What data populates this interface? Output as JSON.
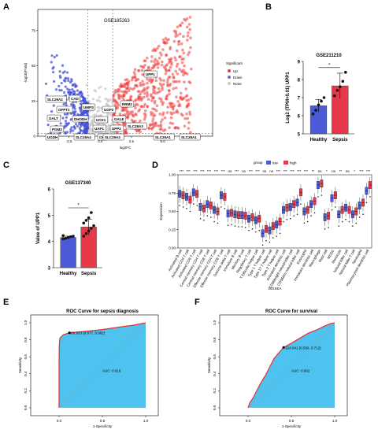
{
  "panels": {
    "a": {
      "letter": "A"
    },
    "b": {
      "letter": "B"
    },
    "c": {
      "letter": "C"
    },
    "d": {
      "letter": "D"
    },
    "e": {
      "letter": "E"
    },
    "f": {
      "letter": "F"
    }
  },
  "chart_data": [
    {
      "panel": "A",
      "type": "scatter",
      "title": "GSE185263",
      "xlabel": "log2FC",
      "ylabel": "-log10(P.Val)",
      "xlim": [
        -5,
        9
      ],
      "ylim": [
        0,
        90
      ],
      "x_ticks": [
        "-2.5",
        "0.0",
        "2.5",
        "5.0"
      ],
      "y_ticks": [
        "0",
        "25",
        "50",
        "75"
      ],
      "legend": {
        "title": "Significant",
        "items": [
          "Up",
          "Down",
          "None"
        ],
        "colors": [
          "#ef3b3b",
          "#6470d4",
          "#c8c8c8"
        ]
      },
      "gene_labels": [
        "UPP1",
        "SLC29A2",
        "CAD",
        "GFPT1",
        "UMPS",
        "UGP2",
        "RRM2",
        "GALT",
        "DHODH",
        "UCK1",
        "GALE",
        "PGM3",
        "UAP1",
        "UPP2",
        "SLC28A3",
        "UGDH",
        "SLC29A4",
        "CK2",
        "SLC29A3",
        "SLC29A1",
        "SLC28A1"
      ]
    },
    {
      "panel": "B",
      "type": "bar",
      "title": "GSE211210",
      "ylabel": "Log2 (TPM+0.01) UPP1",
      "categories": [
        "Healthy",
        "Sepsis"
      ],
      "values": [
        6.55,
        7.65
      ],
      "errors": [
        0.35,
        0.7
      ],
      "points": [
        [
          6.1,
          6.3,
          6.6,
          6.8,
          7.0
        ],
        [
          7.1,
          7.4,
          7.6,
          7.9,
          8.4
        ]
      ],
      "colors": [
        "#4b5bd8",
        "#e8394a"
      ],
      "ylim": [
        5,
        9
      ],
      "y_ticks": [
        "5",
        "6",
        "7",
        "8",
        "9"
      ],
      "significance": "*"
    },
    {
      "panel": "C",
      "type": "bar",
      "title": "GSE137340",
      "ylabel": "Value of UPP1",
      "categories": [
        "Healthy",
        "Sepsis"
      ],
      "values": [
        4.15,
        4.55
      ],
      "errors": [
        0.05,
        0.3
      ],
      "points": [
        [
          4.1,
          4.12,
          4.15,
          4.18,
          4.2,
          4.22
        ],
        [
          4.2,
          4.3,
          4.4,
          4.5,
          4.6,
          4.7,
          4.8,
          4.9,
          5.1
        ]
      ],
      "colors": [
        "#4b5bd8",
        "#e8394a"
      ],
      "ylim": [
        3,
        6
      ],
      "y_ticks": [
        "3",
        "4",
        "5",
        "6"
      ],
      "significance": "*"
    },
    {
      "panel": "D",
      "type": "boxplot",
      "xlabel": "ssGSEA",
      "ylabel": "Expression",
      "legend": {
        "title": "group",
        "items": [
          "low",
          "high"
        ],
        "colors": [
          "#4b5bd8",
          "#e8394a"
        ]
      },
      "y_ticks": [
        "0.00",
        "0.25",
        "0.50",
        "0.75",
        "1.00"
      ],
      "ylim": [
        0,
        1
      ],
      "cells": [
        "Activated B cell",
        "Activated CD4 T cell",
        "Activated CD8 T cell",
        "Central memory CD4 T cell",
        "Central memory CD8 T cell",
        "Effector memory CD4 T cell",
        "Effector memory CD8 T cell",
        "Gamma delta T cell",
        "Immature B cell",
        "Memory B cell",
        "Regulatory T cell",
        "T follicular helper cell",
        "Type 1 T helper cell",
        "Type 17 T helper cell",
        "Type 2 T helper cell",
        "Activated dendritic cell",
        "CD56bright natural killer cell",
        "CD56dim natural killer cell",
        "Eosinophil",
        "Immature dendritic cell",
        "Macrophage",
        "Mast cell",
        "MDSC",
        "Monocyte",
        "Natural killer cell",
        "Natural killer T cell",
        "Neutrophil",
        "Plasmacytoid dendritic cell"
      ],
      "low_median": [
        0.74,
        0.7,
        0.76,
        0.56,
        0.6,
        0.52,
        0.72,
        0.47,
        0.46,
        0.45,
        0.4,
        0.38,
        0.2,
        0.24,
        0.32,
        0.52,
        0.56,
        0.62,
        0.5,
        0.6,
        0.86,
        0.42,
        0.68,
        0.46,
        0.55,
        0.46,
        0.58,
        0.78
      ],
      "high_median": [
        0.72,
        0.66,
        0.74,
        0.54,
        0.58,
        0.5,
        0.7,
        0.48,
        0.45,
        0.44,
        0.42,
        0.4,
        0.26,
        0.3,
        0.36,
        0.55,
        0.6,
        0.76,
        0.52,
        0.64,
        0.88,
        0.44,
        0.72,
        0.52,
        0.52,
        0.5,
        0.62,
        0.86
      ],
      "significance": [
        "***",
        "***",
        "***",
        "***",
        "***",
        "***",
        "***",
        "ns",
        "***",
        "ns",
        "***",
        "***",
        "ns",
        "ns",
        "***",
        "***",
        "***",
        "***",
        "***",
        "**",
        "ns",
        "*",
        "ns",
        "**",
        "ns",
        "*",
        "***",
        "***"
      ]
    },
    {
      "panel": "E",
      "type": "line",
      "title": "ROC Curve for sepsis diagnosis",
      "xlabel": "1-Specificity",
      "ylabel": "Sensitivity",
      "x_ticks": [
        "0.0",
        "0.5",
        "1.0"
      ],
      "y_ticks": [
        "0.0",
        "0.2",
        "0.4",
        "0.6",
        "0.8",
        "1.0"
      ],
      "auc": "AUC: 0.916",
      "threshold": "60.933 (0.877, 0.882)",
      "points": [
        [
          0,
          0
        ],
        [
          0,
          0.5
        ],
        [
          0.002,
          0.72
        ],
        [
          0.01,
          0.82
        ],
        [
          0.05,
          0.86
        ],
        [
          0.12,
          0.882
        ],
        [
          0.3,
          0.9
        ],
        [
          0.5,
          0.92
        ],
        [
          0.7,
          0.95
        ],
        [
          0.85,
          0.97
        ],
        [
          1,
          1
        ]
      ]
    },
    {
      "panel": "F",
      "type": "line",
      "title": "ROC Curve for survival",
      "xlabel": "1-Specificity",
      "ylabel": "Sensitivity",
      "x_ticks": [
        "0.0",
        "0.5",
        "1.0"
      ],
      "y_ticks": [
        "0.0",
        "0.2",
        "0.4",
        "0.6",
        "0.8",
        "1.0"
      ],
      "auc": "AUC: 0.662",
      "threshold": "124.041 (0.590, 0.712)",
      "points": [
        [
          0,
          0
        ],
        [
          0.02,
          0.06
        ],
        [
          0.06,
          0.12
        ],
        [
          0.1,
          0.2
        ],
        [
          0.14,
          0.28
        ],
        [
          0.2,
          0.38
        ],
        [
          0.25,
          0.48
        ],
        [
          0.3,
          0.58
        ],
        [
          0.35,
          0.64
        ],
        [
          0.41,
          0.71
        ],
        [
          0.5,
          0.76
        ],
        [
          0.6,
          0.82
        ],
        [
          0.7,
          0.88
        ],
        [
          0.8,
          0.92
        ],
        [
          0.88,
          0.96
        ],
        [
          0.95,
          0.99
        ],
        [
          1,
          1
        ]
      ]
    }
  ]
}
